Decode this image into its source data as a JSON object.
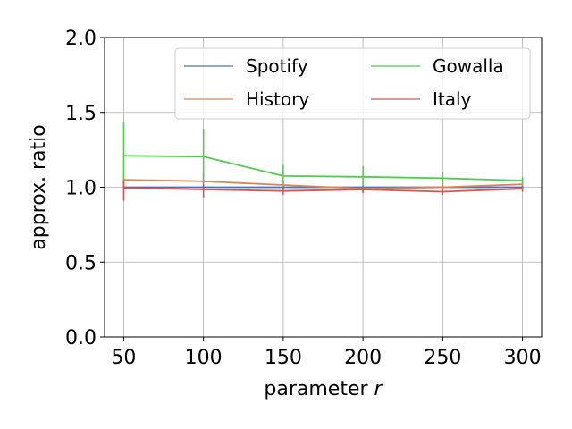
{
  "chart_data": {
    "type": "line",
    "xlabel_prefix": "parameter ",
    "xlabel_var": "r",
    "ylabel": "approx. ratio",
    "x": [
      50,
      100,
      150,
      200,
      250,
      300
    ],
    "xticks": [
      "50",
      "100",
      "150",
      "200",
      "250",
      "300"
    ],
    "yticks": [
      "0.0",
      "0.5",
      "1.0",
      "1.5",
      "2.0"
    ],
    "ytick_values": [
      0.0,
      0.5,
      1.0,
      1.5,
      2.0
    ],
    "xlim": [
      38,
      312
    ],
    "ylim": [
      0.0,
      2.0
    ],
    "grid": true,
    "legend_placement": "top-right",
    "series": [
      {
        "name": "Spotify",
        "color": "#4c72b0",
        "values": [
          1.0,
          1.0,
          1.0,
          1.0,
          1.0,
          1.0
        ],
        "err_low": [
          0.99,
          0.99,
          0.99,
          0.99,
          0.99,
          0.99
        ],
        "err_high": [
          1.01,
          1.01,
          1.01,
          1.01,
          1.01,
          1.01
        ]
      },
      {
        "name": "History",
        "color": "#dd8452",
        "values": [
          1.05,
          1.04,
          1.015,
          0.99,
          1.0,
          1.02
        ],
        "err_low": [
          1.0,
          0.99,
          0.99,
          0.97,
          0.98,
          1.0
        ],
        "err_high": [
          1.1,
          1.09,
          1.04,
          1.01,
          1.02,
          1.04
        ]
      },
      {
        "name": "Gowalla",
        "color": "#55c855",
        "values": [
          1.21,
          1.205,
          1.075,
          1.07,
          1.06,
          1.045
        ],
        "err_low": [
          0.99,
          1.02,
          1.0,
          1.0,
          1.0,
          1.02
        ],
        "err_high": [
          1.44,
          1.39,
          1.15,
          1.14,
          1.1,
          1.07
        ]
      },
      {
        "name": "Italy",
        "color": "#d9534f",
        "values": [
          0.995,
          0.985,
          0.975,
          0.985,
          0.97,
          0.99
        ],
        "err_low": [
          0.91,
          0.93,
          0.95,
          0.96,
          0.95,
          0.97
        ],
        "err_high": [
          1.05,
          1.02,
          1.0,
          1.0,
          0.99,
          1.01
        ]
      }
    ]
  }
}
